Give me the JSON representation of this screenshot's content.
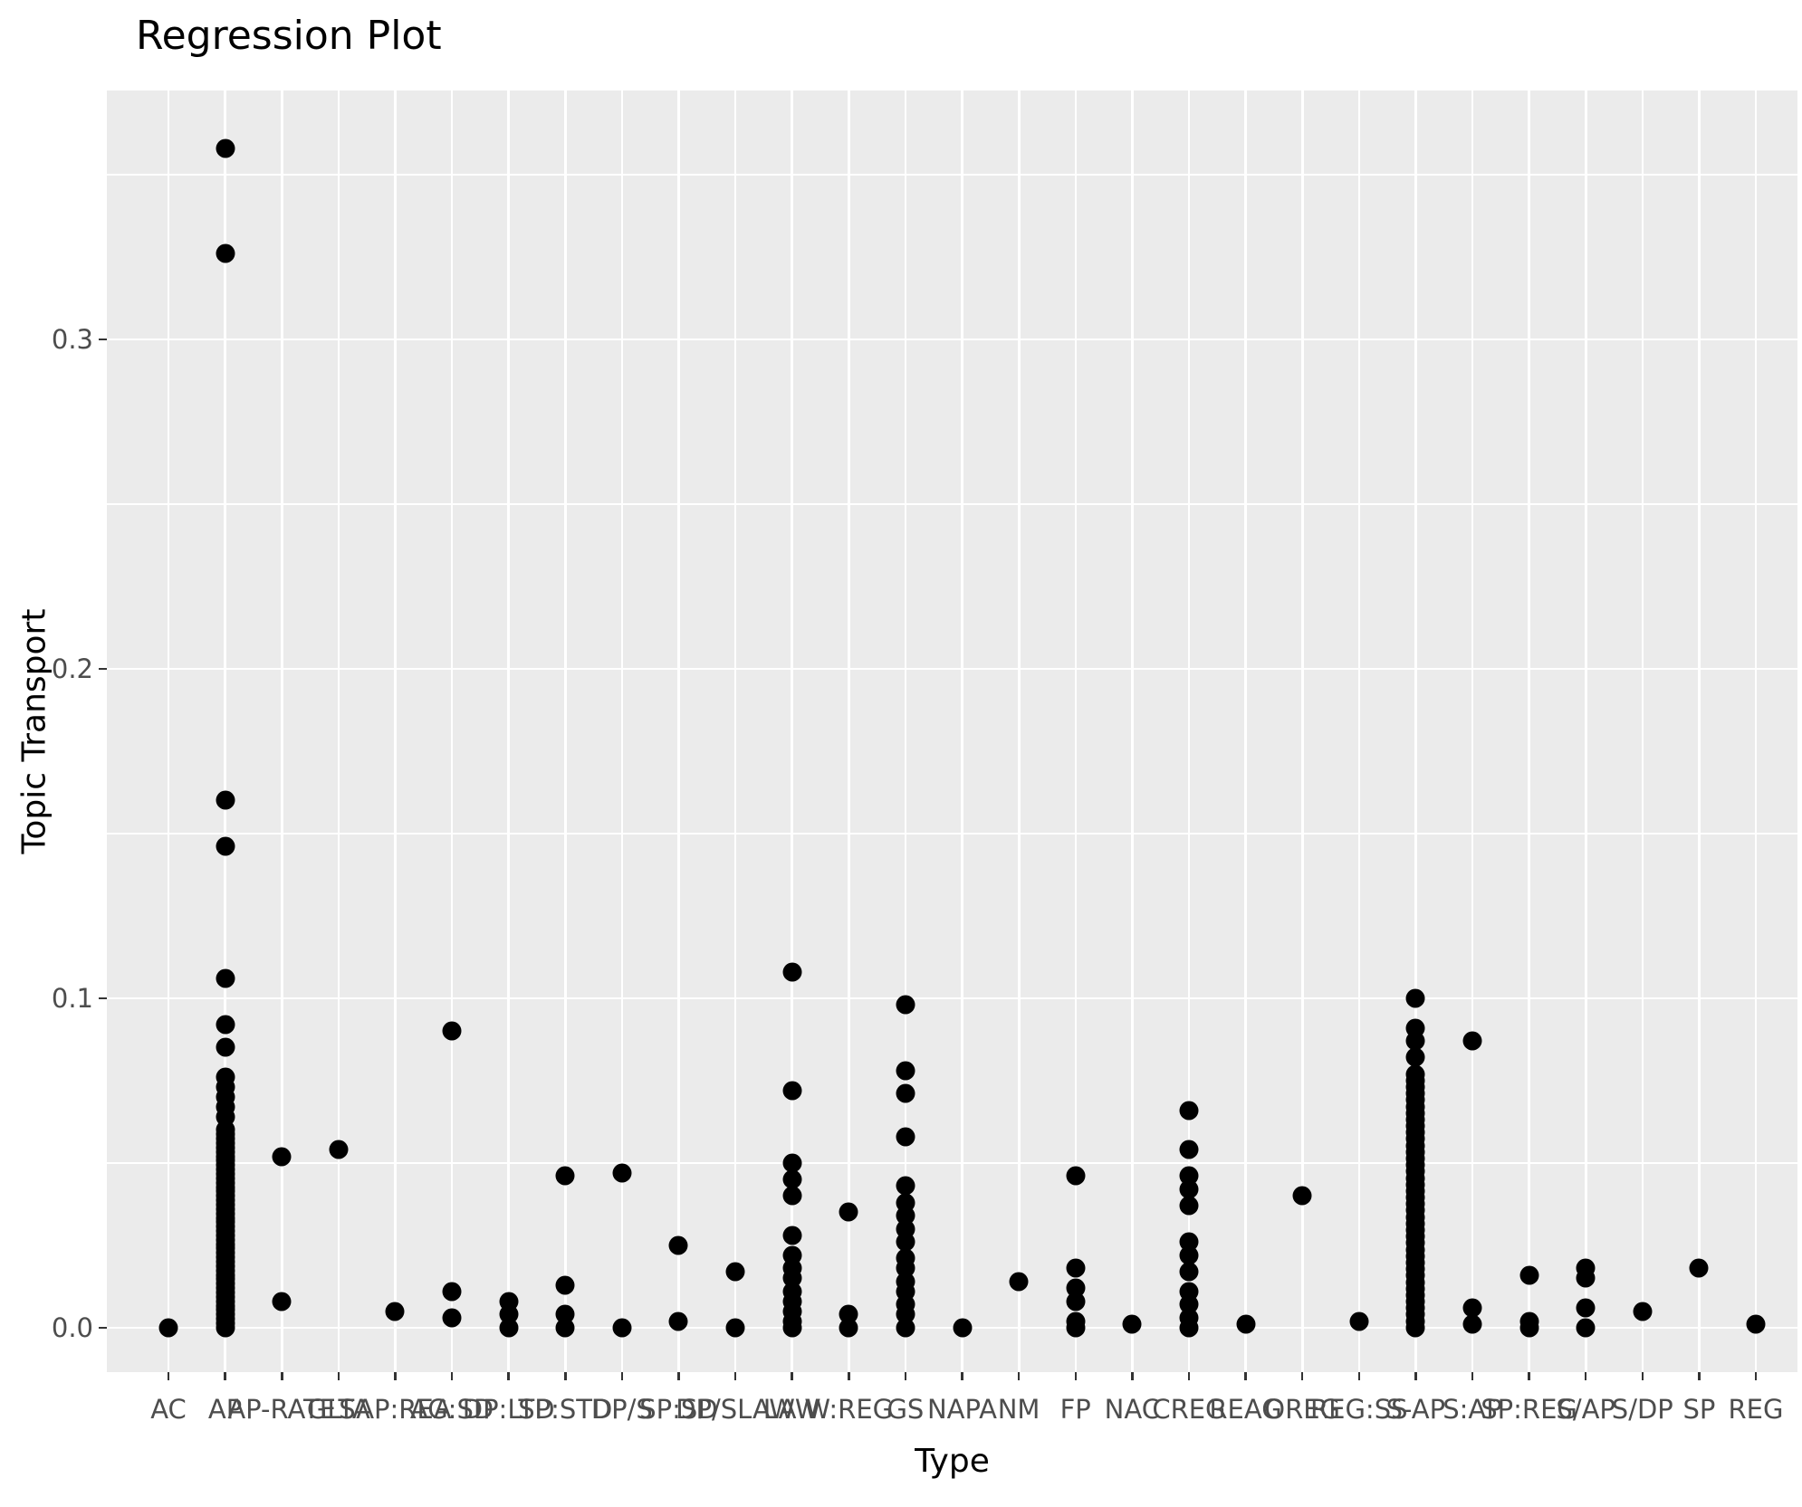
{
  "title": "Regression Plot",
  "colors": {
    "panel_bg": "#EBEBEB",
    "grid": "#FFFFFF",
    "point": "#000000",
    "axis_text": "#4D4D4D",
    "tick_mark": "#333333",
    "title_text": "#000000"
  },
  "chart_data": {
    "type": "scatter",
    "title": "Regression Plot",
    "xlabel": "Type",
    "ylabel": "Topic Transport",
    "legend": "none",
    "grid": "horizontal major+minor (white), vertical major per category (white), grey panel",
    "ylim": [
      -0.0135,
      0.3755
    ],
    "y_major_ticks": [
      0.0,
      0.1,
      0.2,
      0.3
    ],
    "y_major_tick_labels": [
      "0.0",
      "0.1",
      "0.2",
      "0.3"
    ],
    "y_minor_ticks": [
      0.05,
      0.15,
      0.25,
      0.35
    ],
    "categories": [
      "AC",
      "AP",
      "AP-RATE",
      "GLTA",
      "SAP:REA",
      "AG:SD",
      "DP:LTD",
      "SP:STD",
      "DP/S",
      "SP:SD",
      "DP/SLAW",
      "LAW",
      "W:REG",
      "GS",
      "NAPA",
      "NM",
      "FP",
      "NAC",
      "CREG",
      "REAG",
      "OREG",
      "REG:SS",
      "S-AP",
      "S:AP",
      "SP:REG",
      "S/AP",
      "S/DP",
      "SP",
      "REG"
    ],
    "points_by_category": [
      {
        "category": "AC",
        "values": [
          0.0
        ]
      },
      {
        "category": "AP",
        "values": [
          0.358,
          0.326,
          0.16,
          0.146,
          0.106,
          0.092,
          0.085,
          0.076,
          0.073,
          0.07,
          0.067,
          0.064
        ],
        "dense_runs": [
          {
            "min": 0.0,
            "max": 0.06,
            "n": 46
          }
        ]
      },
      {
        "category": "AP-RATE",
        "values": [
          0.052,
          0.008
        ]
      },
      {
        "category": "GLTA",
        "values": [
          0.054
        ]
      },
      {
        "category": "SAP:REA",
        "values": [
          0.005
        ]
      },
      {
        "category": "AG:SD",
        "values": [
          0.09,
          0.011,
          0.003
        ]
      },
      {
        "category": "DP:LTD",
        "values": [
          0.008,
          0.004,
          0.0
        ]
      },
      {
        "category": "SP:STD",
        "values": [
          0.046,
          0.013,
          0.004,
          0.0
        ]
      },
      {
        "category": "DP/S",
        "values": [
          0.047,
          0.0
        ]
      },
      {
        "category": "SP:SD",
        "values": [
          0.025,
          0.002
        ]
      },
      {
        "category": "DP/SLAW",
        "values": [
          0.017,
          0.0
        ]
      },
      {
        "category": "LAW",
        "values": [
          0.108,
          0.072,
          0.05,
          0.045,
          0.04,
          0.028,
          0.022,
          0.018,
          0.015,
          0.011,
          0.008,
          0.005,
          0.002,
          0.0
        ]
      },
      {
        "category": "W:REG",
        "values": [
          0.035,
          0.004,
          0.0
        ]
      },
      {
        "category": "GS",
        "values": [
          0.098,
          0.078,
          0.071,
          0.058,
          0.043,
          0.038,
          0.034,
          0.03,
          0.026,
          0.021,
          0.018,
          0.014,
          0.011,
          0.007,
          0.004,
          0.0
        ]
      },
      {
        "category": "NAPA",
        "values": [
          0.0
        ]
      },
      {
        "category": "NM",
        "values": [
          0.014
        ]
      },
      {
        "category": "FP",
        "values": [
          0.046,
          0.018,
          0.012,
          0.008,
          0.002,
          0.0
        ]
      },
      {
        "category": "NAC",
        "values": [
          0.001
        ]
      },
      {
        "category": "CREG",
        "values": [
          0.066,
          0.054,
          0.046,
          0.042,
          0.037,
          0.026,
          0.022,
          0.017,
          0.011,
          0.007,
          0.003,
          0.0
        ]
      },
      {
        "category": "REAG",
        "values": [
          0.001
        ]
      },
      {
        "category": "OREG",
        "values": [
          0.04
        ]
      },
      {
        "category": "REG:SS",
        "values": [
          0.002
        ]
      },
      {
        "category": "S-AP",
        "values": [
          0.1,
          0.091,
          0.087,
          0.082
        ],
        "dense_runs": [
          {
            "min": 0.0,
            "max": 0.077,
            "n": 40
          }
        ]
      },
      {
        "category": "S:AP",
        "values": [
          0.087,
          0.006,
          0.001
        ]
      },
      {
        "category": "SP:REG",
        "values": [
          0.016,
          0.002,
          0.0
        ]
      },
      {
        "category": "S/AP",
        "values": [
          0.018,
          0.015,
          0.006,
          0.0
        ]
      },
      {
        "category": "S/DP",
        "values": [
          0.005
        ]
      },
      {
        "category": "SP",
        "values": [
          0.018
        ]
      },
      {
        "category": "REG",
        "values": [
          0.001
        ]
      }
    ]
  }
}
